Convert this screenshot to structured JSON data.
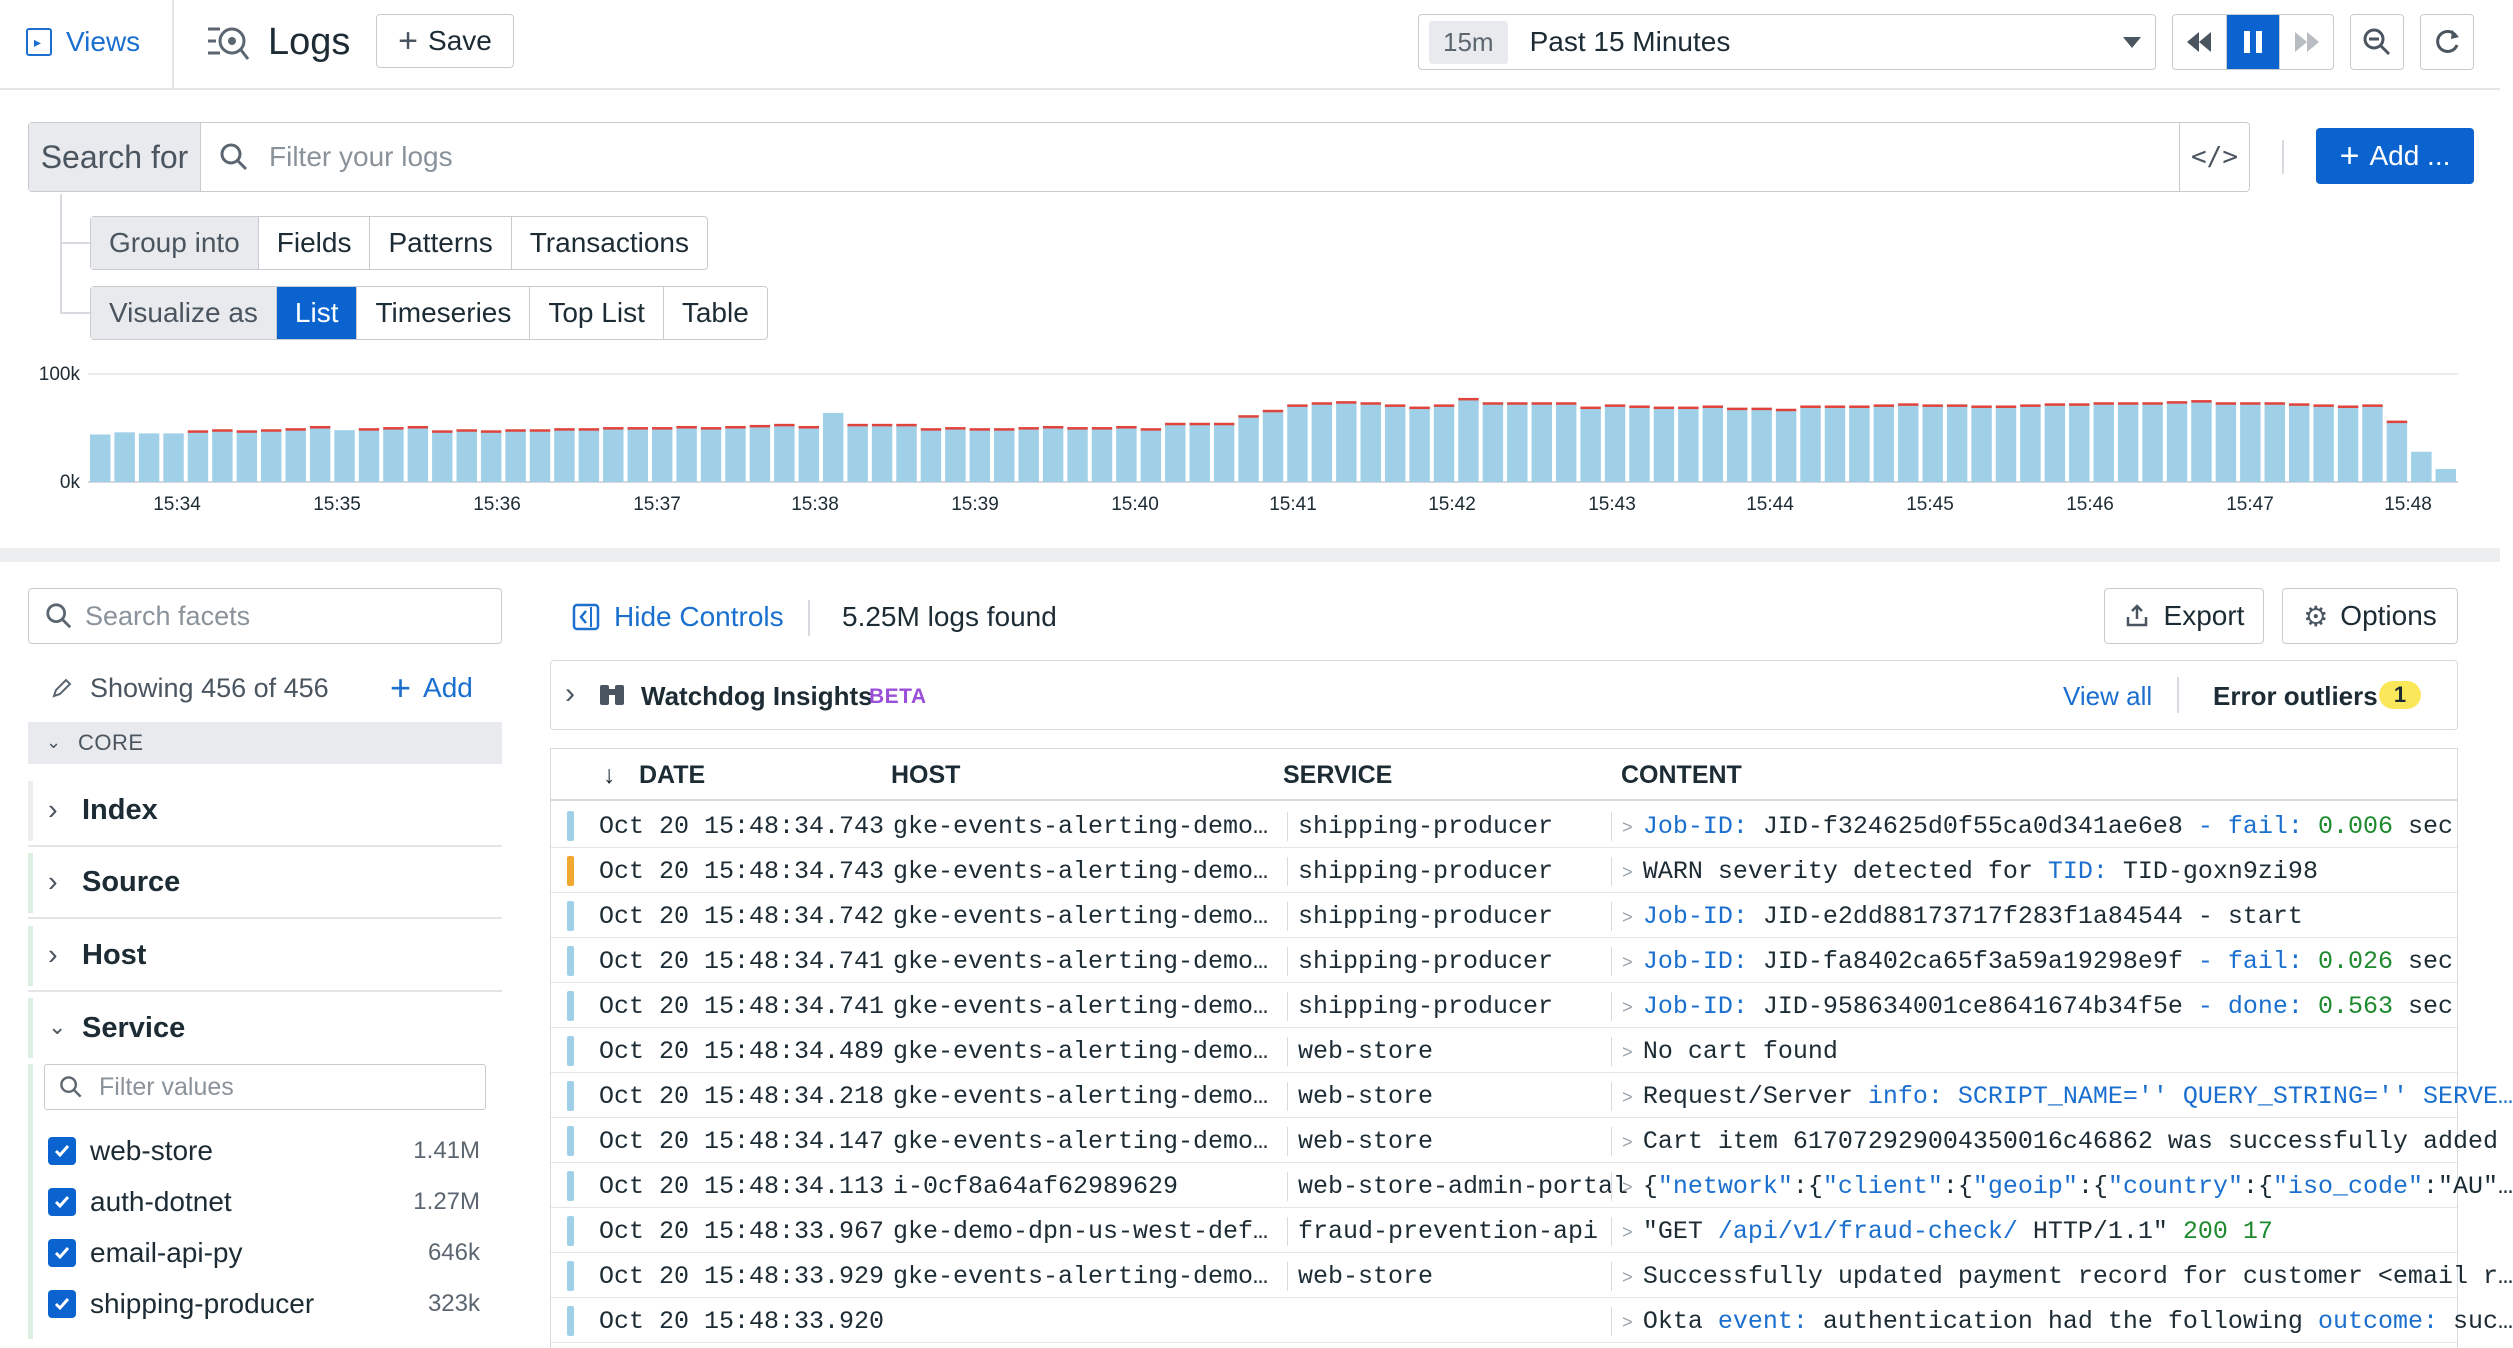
{
  "topbar": {
    "views_label": "Views",
    "title": "Logs",
    "save_label": "Save",
    "time_chip": "15m",
    "time_range": "Past 15 Minutes"
  },
  "search": {
    "label": "Search for",
    "placeholder": "Filter your logs",
    "add_label": "Add ..."
  },
  "group_into": {
    "label": "Group into",
    "options": [
      "Fields",
      "Patterns",
      "Transactions"
    ]
  },
  "visualize_as": {
    "label": "Visualize as",
    "options": [
      "List",
      "Timeseries",
      "Top List",
      "Table"
    ],
    "selected": "List"
  },
  "histogram": {
    "y_ticks": [
      "100k",
      "0k"
    ],
    "x_ticks": [
      "15:34",
      "15:35",
      "15:36",
      "15:37",
      "15:38",
      "15:39",
      "15:40",
      "15:41",
      "15:42",
      "15:43",
      "15:44",
      "15:45",
      "15:46",
      "15:47",
      "15:48"
    ],
    "bar_color": "#9fd0e8",
    "error_color": "#e0433b",
    "warn_color": "#f0a830",
    "values": [
      44,
      46,
      45,
      45,
      46,
      47,
      46,
      47,
      48,
      50,
      48,
      48,
      49,
      50,
      46,
      47,
      46,
      47,
      47,
      48,
      48,
      49,
      49,
      49,
      50,
      49,
      50,
      51,
      52,
      50,
      64,
      52,
      52,
      52,
      48,
      49,
      48,
      48,
      49,
      50,
      49,
      49,
      50,
      48,
      53,
      53,
      53,
      60,
      65,
      70,
      72,
      73,
      72,
      70,
      68,
      70,
      76,
      72,
      72,
      72,
      72,
      68,
      70,
      69,
      68,
      68,
      69,
      67,
      67,
      66,
      69,
      69,
      69,
      70,
      71,
      70,
      70,
      69,
      69,
      70,
      71,
      71,
      72,
      72,
      72,
      73,
      74,
      72,
      72,
      72,
      71,
      70,
      69,
      70,
      55,
      28,
      12
    ],
    "errors": [
      0,
      0,
      0,
      0,
      1,
      1,
      1,
      1,
      2,
      1,
      0,
      1,
      1,
      1,
      1,
      1,
      1,
      1,
      1,
      1,
      1,
      2,
      1,
      1,
      1,
      1,
      1,
      1,
      1,
      1,
      0,
      1,
      1,
      1,
      2,
      2,
      2,
      2,
      2,
      2,
      2,
      2,
      1,
      1,
      1,
      1,
      1,
      2,
      2,
      2,
      2,
      2,
      1,
      2,
      1,
      2,
      2,
      2,
      2,
      2,
      2,
      2,
      2,
      2,
      2,
      2,
      2,
      2,
      2,
      2,
      2,
      2,
      2,
      2,
      2,
      2,
      2,
      2,
      2,
      2,
      2,
      2,
      2,
      2,
      2,
      2,
      2,
      2,
      2,
      2,
      2,
      2,
      2,
      2,
      2,
      0,
      0
    ]
  },
  "controls": {
    "hide_label": "Hide Controls",
    "count_label": "5.25M logs found",
    "export_label": "Export",
    "options_label": "Options"
  },
  "facets": {
    "search_placeholder": "Search facets",
    "showing": "Showing 456 of 456",
    "add_label": "Add",
    "core_label": "CORE",
    "groups": [
      "Index",
      "Source",
      "Host",
      "Service"
    ],
    "filter_placeholder": "Filter values",
    "service_values": [
      {
        "name": "web-store",
        "count": "1.41M"
      },
      {
        "name": "auth-dotnet",
        "count": "1.27M"
      },
      {
        "name": "email-api-py",
        "count": "646k"
      },
      {
        "name": "shipping-producer",
        "count": "323k"
      }
    ]
  },
  "watchdog": {
    "title": "Watchdog Insights",
    "beta": "BETA",
    "view_all": "View all",
    "outliers_label": "Error outliers",
    "outliers_count": "1"
  },
  "table": {
    "columns": [
      "DATE",
      "HOST",
      "SERVICE",
      "CONTENT"
    ],
    "rows": [
      {
        "status": "info",
        "date": "Oct 20 15:48:34.743",
        "host": "gke-events-alerting-demo…",
        "service": "shipping-producer",
        "content": [
          {
            "t": "Job-ID:",
            "c": "k"
          },
          {
            "t": " JID-f324625d0f55ca0d341ae6e8 "
          },
          {
            "t": "- fail:",
            "c": "k"
          },
          {
            "t": " 0.006",
            "c": "g"
          },
          {
            "t": " sec"
          }
        ]
      },
      {
        "status": "warn",
        "date": "Oct 20 15:48:34.743",
        "host": "gke-events-alerting-demo…",
        "service": "shipping-producer",
        "content": [
          {
            "t": "WARN severity detected for "
          },
          {
            "t": "TID:",
            "c": "k"
          },
          {
            "t": " TID-goxn9zi98"
          }
        ]
      },
      {
        "status": "info",
        "date": "Oct 20 15:48:34.742",
        "host": "gke-events-alerting-demo…",
        "service": "shipping-producer",
        "content": [
          {
            "t": "Job-ID:",
            "c": "k"
          },
          {
            "t": " JID-e2dd88173717f283f1a84544 - start"
          }
        ]
      },
      {
        "status": "info",
        "date": "Oct 20 15:48:34.741",
        "host": "gke-events-alerting-demo…",
        "service": "shipping-producer",
        "content": [
          {
            "t": "Job-ID:",
            "c": "k"
          },
          {
            "t": " JID-fa8402ca65f3a59a19298e9f "
          },
          {
            "t": "- fail:",
            "c": "k"
          },
          {
            "t": " 0.026",
            "c": "g"
          },
          {
            "t": " sec"
          }
        ]
      },
      {
        "status": "info",
        "date": "Oct 20 15:48:34.741",
        "host": "gke-events-alerting-demo…",
        "service": "shipping-producer",
        "content": [
          {
            "t": "Job-ID:",
            "c": "k"
          },
          {
            "t": " JID-958634001ce8641674b34f5e "
          },
          {
            "t": "- done:",
            "c": "k"
          },
          {
            "t": " 0.563",
            "c": "g"
          },
          {
            "t": " sec"
          }
        ]
      },
      {
        "status": "info",
        "date": "Oct 20 15:48:34.489",
        "host": "gke-events-alerting-demo…",
        "service": "web-store",
        "content": [
          {
            "t": "No cart found"
          }
        ]
      },
      {
        "status": "info",
        "date": "Oct 20 15:48:34.218",
        "host": "gke-events-alerting-demo…",
        "service": "web-store",
        "content": [
          {
            "t": "Request/Server "
          },
          {
            "t": "info: SCRIPT_NAME='' QUERY_STRING='' SERVE…",
            "c": "k"
          }
        ]
      },
      {
        "status": "info",
        "date": "Oct 20 15:48:34.147",
        "host": "gke-events-alerting-demo…",
        "service": "web-store",
        "content": [
          {
            "t": "Cart item 617072929004350016c46862 was successfully added"
          }
        ]
      },
      {
        "status": "info",
        "date": "Oct 20 15:48:34.113",
        "host": "i-0cf8a64af62989629",
        "service": "web-store-admin-portal",
        "content": [
          {
            "t": "{"
          },
          {
            "t": "\"network\"",
            "c": "k"
          },
          {
            "t": ":{"
          },
          {
            "t": "\"client\"",
            "c": "k"
          },
          {
            "t": ":{"
          },
          {
            "t": "\"geoip\"",
            "c": "k"
          },
          {
            "t": ":{"
          },
          {
            "t": "\"country\"",
            "c": "k"
          },
          {
            "t": ":{"
          },
          {
            "t": "\"iso_code\"",
            "c": "k"
          },
          {
            "t": ":\"AU\"…"
          }
        ]
      },
      {
        "status": "info",
        "date": "Oct 20 15:48:33.967",
        "host": "gke-demo-dpn-us-west-def…",
        "service": "fraud-prevention-api",
        "content": [
          {
            "t": "\"GET "
          },
          {
            "t": "/api/v1/fraud-check/",
            "c": "k"
          },
          {
            "t": " HTTP/1.1\" "
          },
          {
            "t": "200 17",
            "c": "g"
          }
        ]
      },
      {
        "status": "info",
        "date": "Oct 20 15:48:33.929",
        "host": "gke-events-alerting-demo…",
        "service": "web-store",
        "content": [
          {
            "t": "Successfully updated payment record for customer <email r…"
          }
        ]
      },
      {
        "status": "info",
        "date": "Oct 20 15:48:33.920",
        "host": "",
        "service": "",
        "content": [
          {
            "t": "Okta "
          },
          {
            "t": "event:",
            "c": "k"
          },
          {
            "t": " authentication had the following "
          },
          {
            "t": "outcome:",
            "c": "k"
          },
          {
            "t": " suc…"
          }
        ]
      }
    ]
  }
}
